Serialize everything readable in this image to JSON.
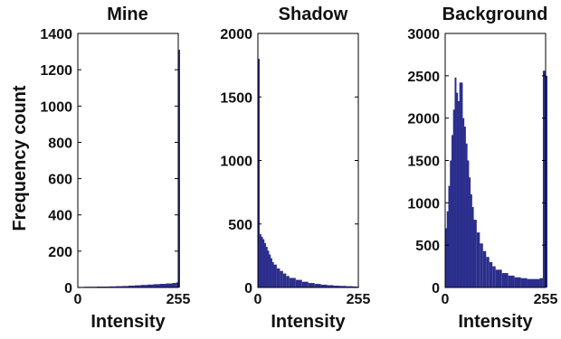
{
  "ylabel": "Frequency count",
  "chart_data": [
    {
      "type": "bar",
      "title": "Mine",
      "xlabel": "Intensity",
      "xlim": [
        0,
        255
      ],
      "ylim": [
        0,
        1400
      ],
      "xticks": [
        0,
        255
      ],
      "yticks": [
        0,
        200,
        400,
        600,
        800,
        1000,
        1200,
        1400
      ],
      "bins": [
        {
          "x": 0,
          "y": 3
        },
        {
          "x": 16,
          "y": 4
        },
        {
          "x": 32,
          "y": 4
        },
        {
          "x": 48,
          "y": 5
        },
        {
          "x": 64,
          "y": 5
        },
        {
          "x": 80,
          "y": 6
        },
        {
          "x": 96,
          "y": 7
        },
        {
          "x": 112,
          "y": 8
        },
        {
          "x": 128,
          "y": 10
        },
        {
          "x": 144,
          "y": 12
        },
        {
          "x": 160,
          "y": 14
        },
        {
          "x": 176,
          "y": 16
        },
        {
          "x": 192,
          "y": 18
        },
        {
          "x": 208,
          "y": 20
        },
        {
          "x": 224,
          "y": 22
        },
        {
          "x": 240,
          "y": 25
        },
        {
          "x": 250,
          "y": 28
        },
        {
          "x": 255,
          "y": 1310
        }
      ]
    },
    {
      "type": "bar",
      "title": "Shadow",
      "xlabel": "Intensity",
      "xlim": [
        0,
        255
      ],
      "ylim": [
        0,
        2000
      ],
      "xticks": [
        0,
        255
      ],
      "yticks": [
        0,
        500,
        1000,
        1500,
        2000
      ],
      "bins": [
        {
          "x": 0,
          "y": 1800
        },
        {
          "x": 4,
          "y": 420
        },
        {
          "x": 8,
          "y": 400
        },
        {
          "x": 12,
          "y": 380
        },
        {
          "x": 16,
          "y": 350
        },
        {
          "x": 20,
          "y": 320
        },
        {
          "x": 24,
          "y": 290
        },
        {
          "x": 28,
          "y": 260
        },
        {
          "x": 32,
          "y": 230
        },
        {
          "x": 36,
          "y": 200
        },
        {
          "x": 40,
          "y": 180
        },
        {
          "x": 48,
          "y": 150
        },
        {
          "x": 56,
          "y": 130
        },
        {
          "x": 64,
          "y": 110
        },
        {
          "x": 72,
          "y": 90
        },
        {
          "x": 80,
          "y": 75
        },
        {
          "x": 96,
          "y": 60
        },
        {
          "x": 112,
          "y": 45
        },
        {
          "x": 128,
          "y": 35
        },
        {
          "x": 144,
          "y": 28
        },
        {
          "x": 160,
          "y": 22
        },
        {
          "x": 176,
          "y": 18
        },
        {
          "x": 192,
          "y": 14
        },
        {
          "x": 208,
          "y": 12
        },
        {
          "x": 224,
          "y": 10
        },
        {
          "x": 240,
          "y": 8
        },
        {
          "x": 250,
          "y": 6
        }
      ]
    },
    {
      "type": "bar",
      "title": "Background",
      "xlabel": "Intensity",
      "xlim": [
        0,
        255
      ],
      "ylim": [
        0,
        3000
      ],
      "xticks": [
        0,
        255
      ],
      "yticks": [
        0,
        500,
        1000,
        1500,
        2000,
        2500,
        3000
      ],
      "bins": [
        {
          "x": 0,
          "y": 700
        },
        {
          "x": 4,
          "y": 900
        },
        {
          "x": 8,
          "y": 1200
        },
        {
          "x": 12,
          "y": 1500
        },
        {
          "x": 16,
          "y": 1800
        },
        {
          "x": 20,
          "y": 2100
        },
        {
          "x": 24,
          "y": 2480
        },
        {
          "x": 28,
          "y": 2300
        },
        {
          "x": 32,
          "y": 2200
        },
        {
          "x": 36,
          "y": 2420
        },
        {
          "x": 40,
          "y": 2420
        },
        {
          "x": 44,
          "y": 2000
        },
        {
          "x": 48,
          "y": 1900
        },
        {
          "x": 52,
          "y": 1700
        },
        {
          "x": 56,
          "y": 1500
        },
        {
          "x": 60,
          "y": 1300
        },
        {
          "x": 64,
          "y": 1100
        },
        {
          "x": 68,
          "y": 950
        },
        {
          "x": 72,
          "y": 800
        },
        {
          "x": 80,
          "y": 650
        },
        {
          "x": 88,
          "y": 520
        },
        {
          "x": 96,
          "y": 430
        },
        {
          "x": 104,
          "y": 360
        },
        {
          "x": 112,
          "y": 300
        },
        {
          "x": 120,
          "y": 250
        },
        {
          "x": 128,
          "y": 210
        },
        {
          "x": 144,
          "y": 170
        },
        {
          "x": 160,
          "y": 140
        },
        {
          "x": 176,
          "y": 120
        },
        {
          "x": 192,
          "y": 110
        },
        {
          "x": 208,
          "y": 100
        },
        {
          "x": 224,
          "y": 100
        },
        {
          "x": 240,
          "y": 110
        },
        {
          "x": 248,
          "y": 2560
        },
        {
          "x": 255,
          "y": 2500
        }
      ]
    }
  ]
}
